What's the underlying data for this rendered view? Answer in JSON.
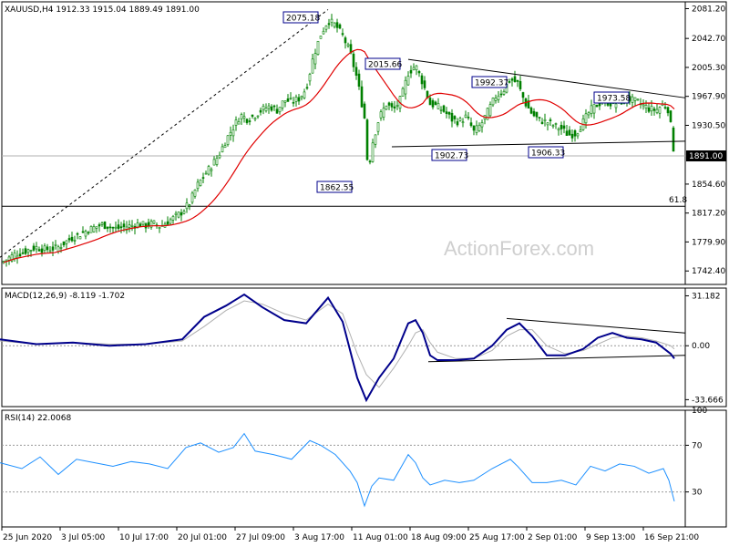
{
  "header": {
    "price_title": "XAUUSD,H4  1912.33 1915.04 1889.49 1891.00",
    "macd_title": "MACD(12,26,9) -8.119 -1.702",
    "rsi_title": "RSI(14) 22.0068"
  },
  "watermark": "ActionForex.com",
  "colors": {
    "candle": "#008000",
    "ma": "#e00000",
    "macd": "#00008b",
    "signal": "#b0b0b0",
    "rsi": "#1e90ff",
    "line": "#000000"
  },
  "chart_data": [
    {
      "type": "candlestick",
      "title": "XAUUSD,H4",
      "ohlc_last": {
        "open": 1912.33,
        "high": 1915.04,
        "low": 1889.49,
        "close": 1891.0
      },
      "ylim": [
        1725,
        2090
      ],
      "y_ticks": [
        2081.2,
        2042.7,
        2005.3,
        1967.9,
        1930.5,
        1891.0,
        1854.6,
        1817.2,
        1779.9,
        1742.4
      ],
      "x_ticks": [
        "25 Jun 2020",
        "3 Jul 05:00",
        "10 Jul 17:00",
        "20 Jul 01:00",
        "27 Jul 09:00",
        "3 Aug 17:00",
        "11 Aug 01:00",
        "18 Aug 09:00",
        "25 Aug 17:00",
        "2 Sep 01:00",
        "9 Sep 13:00",
        "16 Sep 21:00"
      ],
      "close_path": [
        [
          0,
          1752
        ],
        [
          8,
          1758
        ],
        [
          16,
          1764
        ],
        [
          24,
          1766
        ],
        [
          32,
          1770
        ],
        [
          40,
          1773
        ],
        [
          48,
          1770
        ],
        [
          56,
          1771
        ],
        [
          64,
          1773
        ],
        [
          72,
          1780
        ],
        [
          80,
          1786
        ],
        [
          88,
          1790
        ],
        [
          96,
          1795
        ],
        [
          104,
          1799
        ],
        [
          112,
          1802
        ],
        [
          120,
          1800
        ],
        [
          128,
          1797
        ],
        [
          136,
          1799
        ],
        [
          144,
          1801
        ],
        [
          152,
          1803
        ],
        [
          160,
          1801
        ],
        [
          168,
          1804
        ],
        [
          176,
          1800
        ],
        [
          184,
          1806
        ],
        [
          192,
          1812
        ],
        [
          200,
          1819
        ],
        [
          208,
          1830
        ],
        [
          216,
          1852
        ],
        [
          224,
          1866
        ],
        [
          232,
          1878
        ],
        [
          240,
          1892
        ],
        [
          248,
          1912
        ],
        [
          256,
          1928
        ],
        [
          264,
          1944
        ],
        [
          272,
          1938
        ],
        [
          280,
          1944
        ],
        [
          288,
          1951
        ],
        [
          296,
          1955
        ],
        [
          304,
          1950
        ],
        [
          312,
          1963
        ],
        [
          320,
          1961
        ],
        [
          328,
          1965
        ],
        [
          336,
          1978
        ],
        [
          344,
          2020
        ],
        [
          352,
          2048
        ],
        [
          360,
          2066
        ],
        [
          368,
          2060
        ],
        [
          376,
          2046
        ],
        [
          384,
          2025
        ],
        [
          392,
          1990
        ],
        [
          400,
          1940
        ],
        [
          404,
          1870
        ],
        [
          408,
          1905
        ],
        [
          416,
          1940
        ],
        [
          424,
          1958
        ],
        [
          432,
          1950
        ],
        [
          440,
          1965
        ],
        [
          448,
          1998
        ],
        [
          456,
          2008
        ],
        [
          464,
          1985
        ],
        [
          472,
          1958
        ],
        [
          480,
          1955
        ],
        [
          488,
          1948
        ],
        [
          496,
          1938
        ],
        [
          504,
          1935
        ],
        [
          512,
          1942
        ],
        [
          520,
          1922
        ],
        [
          528,
          1932
        ],
        [
          536,
          1950
        ],
        [
          544,
          1968
        ],
        [
          552,
          1975
        ],
        [
          560,
          1990
        ],
        [
          568,
          1985
        ],
        [
          576,
          1960
        ],
        [
          584,
          1945
        ],
        [
          592,
          1937
        ],
        [
          600,
          1935
        ],
        [
          608,
          1930
        ],
        [
          616,
          1926
        ],
        [
          624,
          1918
        ],
        [
          632,
          1920
        ],
        [
          640,
          1935
        ],
        [
          648,
          1950
        ],
        [
          656,
          1958
        ],
        [
          664,
          1962
        ],
        [
          672,
          1958
        ],
        [
          680,
          1960
        ],
        [
          688,
          1965
        ],
        [
          696,
          1962
        ],
        [
          704,
          1958
        ],
        [
          712,
          1952
        ],
        [
          720,
          1950
        ],
        [
          728,
          1958
        ],
        [
          734,
          1950
        ],
        [
          740,
          1891
        ]
      ],
      "series": [
        {
          "name": "close",
          "values_source": "close_path"
        }
      ],
      "annotations": [
        {
          "text": "2075.18",
          "x": 352,
          "y": 2075.18
        },
        {
          "text": "2015.66",
          "x": 448,
          "y": 2015.66
        },
        {
          "text": "1992.37",
          "x": 566,
          "y": 1992.37
        },
        {
          "text": "1973.58",
          "x": 692,
          "y": 1973.58
        },
        {
          "text": "1902.73",
          "x": 520,
          "y": 1902.73
        },
        {
          "text": "1906.33",
          "x": 628,
          "y": 1906.33
        },
        {
          "text": "1862.55",
          "x": 400,
          "y": 1862.55
        },
        {
          "text": "61.8",
          "x": 740,
          "y": 1826
        }
      ],
      "trendlines": [
        {
          "from": [
            0,
            1760
          ],
          "to": [
            360,
            2080
          ],
          "style": "dashed"
        },
        {
          "from": [
            448,
            2015.66
          ],
          "to": [
            752,
            1966
          ]
        },
        {
          "from": [
            430,
            1902.73
          ],
          "to": [
            752,
            1910
          ]
        }
      ],
      "hlines": [
        {
          "value": 1891.0,
          "label": "1891.00",
          "style": "current"
        },
        {
          "value": 1826.0,
          "label": "61.8",
          "style": "fib"
        }
      ]
    },
    {
      "type": "line",
      "title": "MACD(12,26,9) -8.119 -1.702",
      "ylim": [
        -38,
        36
      ],
      "y_ticks": [
        31.182,
        0.0,
        -33.666
      ],
      "series": [
        {
          "name": "MACD",
          "points": [
            [
              0,
              4
            ],
            [
              40,
              1
            ],
            [
              80,
              2
            ],
            [
              120,
              0
            ],
            [
              160,
              1
            ],
            [
              200,
              4
            ],
            [
              224,
              18
            ],
            [
              248,
              25
            ],
            [
              268,
              32
            ],
            [
              288,
              24
            ],
            [
              312,
              16
            ],
            [
              336,
              14
            ],
            [
              360,
              30
            ],
            [
              376,
              15
            ],
            [
              392,
              -20
            ],
            [
              402,
              -34
            ],
            [
              416,
              -20
            ],
            [
              432,
              -8
            ],
            [
              448,
              14
            ],
            [
              456,
              16
            ],
            [
              464,
              8
            ],
            [
              472,
              -6
            ],
            [
              480,
              -9
            ],
            [
              500,
              -9
            ],
            [
              520,
              -8
            ],
            [
              540,
              0
            ],
            [
              556,
              10
            ],
            [
              570,
              14
            ],
            [
              584,
              6
            ],
            [
              600,
              -6
            ],
            [
              620,
              -6
            ],
            [
              640,
              -2
            ],
            [
              656,
              5
            ],
            [
              672,
              8
            ],
            [
              688,
              5
            ],
            [
              704,
              4
            ],
            [
              720,
              2
            ],
            [
              736,
              -5
            ],
            [
              740,
              -8
            ]
          ]
        },
        {
          "name": "Signal",
          "points": [
            [
              0,
              3
            ],
            [
              40,
              1
            ],
            [
              80,
              2
            ],
            [
              120,
              1
            ],
            [
              160,
              1
            ],
            [
              200,
              3
            ],
            [
              224,
              12
            ],
            [
              248,
              22
            ],
            [
              268,
              28
            ],
            [
              288,
              26
            ],
            [
              312,
              20
            ],
            [
              336,
              16
            ],
            [
              360,
              26
            ],
            [
              376,
              20
            ],
            [
              392,
              -5
            ],
            [
              402,
              -18
            ],
            [
              416,
              -26
            ],
            [
              432,
              -14
            ],
            [
              448,
              0
            ],
            [
              456,
              8
            ],
            [
              464,
              10
            ],
            [
              472,
              2
            ],
            [
              480,
              -4
            ],
            [
              500,
              -8
            ],
            [
              520,
              -8
            ],
            [
              540,
              -3
            ],
            [
              556,
              6
            ],
            [
              570,
              10
            ],
            [
              584,
              10
            ],
            [
              600,
              0
            ],
            [
              620,
              -5
            ],
            [
              640,
              -3
            ],
            [
              656,
              1
            ],
            [
              672,
              5
            ],
            [
              688,
              6
            ],
            [
              704,
              5
            ],
            [
              720,
              3
            ],
            [
              736,
              0
            ],
            [
              740,
              -2
            ]
          ]
        }
      ],
      "trendlines": [
        {
          "from": [
            556,
            17
          ],
          "to": [
            752,
            8
          ]
        },
        {
          "from": [
            470,
            -10
          ],
          "to": [
            752,
            -6
          ]
        }
      ]
    },
    {
      "type": "line",
      "title": "RSI(14) 22.0068",
      "ylim": [
        0,
        100
      ],
      "y_ticks": [
        100,
        70,
        30
      ],
      "series": [
        {
          "name": "RSI",
          "points": [
            [
              0,
              55
            ],
            [
              24,
              50
            ],
            [
              44,
              60
            ],
            [
              64,
              45
            ],
            [
              84,
              58
            ],
            [
              104,
              55
            ],
            [
              124,
              52
            ],
            [
              144,
              56
            ],
            [
              164,
              54
            ],
            [
              184,
              50
            ],
            [
              204,
              68
            ],
            [
              220,
              72
            ],
            [
              240,
              64
            ],
            [
              256,
              68
            ],
            [
              268,
              80
            ],
            [
              280,
              65
            ],
            [
              300,
              62
            ],
            [
              320,
              58
            ],
            [
              340,
              74
            ],
            [
              352,
              70
            ],
            [
              368,
              62
            ],
            [
              384,
              48
            ],
            [
              392,
              38
            ],
            [
              400,
              18
            ],
            [
              408,
              35
            ],
            [
              416,
              42
            ],
            [
              432,
              40
            ],
            [
              448,
              62
            ],
            [
              456,
              55
            ],
            [
              464,
              42
            ],
            [
              472,
              36
            ],
            [
              488,
              40
            ],
            [
              504,
              38
            ],
            [
              520,
              40
            ],
            [
              540,
              50
            ],
            [
              560,
              58
            ],
            [
              568,
              52
            ],
            [
              584,
              38
            ],
            [
              600,
              38
            ],
            [
              616,
              40
            ],
            [
              632,
              36
            ],
            [
              648,
              52
            ],
            [
              664,
              48
            ],
            [
              680,
              54
            ],
            [
              696,
              52
            ],
            [
              712,
              46
            ],
            [
              728,
              50
            ],
            [
              734,
              40
            ],
            [
              740,
              22
            ]
          ]
        }
      ]
    }
  ]
}
